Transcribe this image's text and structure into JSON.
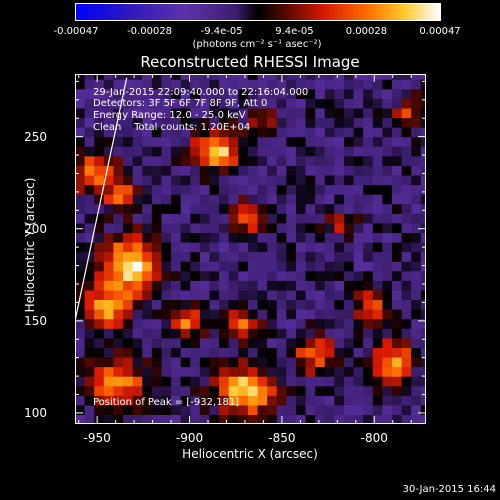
{
  "chart_data": {
    "type": "heatmap",
    "title": "Reconstructed RHESSI Image",
    "xlabel": "Heliocentric X (arcsec)",
    "ylabel": "Heliocentric Y (arcsec)",
    "xlim": [
      -962,
      -772
    ],
    "ylim": [
      94,
      284
    ],
    "xticks": [
      "-950",
      "-900",
      "-850",
      "-800"
    ],
    "xtick_values": [
      -950,
      -900,
      -850,
      -800
    ],
    "yticks": [
      "100",
      "150",
      "200",
      "250"
    ],
    "ytick_values": [
      100,
      150,
      200,
      250
    ],
    "colorbar": {
      "range": [
        -0.00047,
        0.00047
      ],
      "tick_labels": [
        "-0.00047",
        "-0.00028",
        "-9.4e-05",
        "9.4e-05",
        "0.00028",
        "0.00047"
      ],
      "units": "(photons cm⁻² s⁻¹ asec⁻²)"
    },
    "annotations": {
      "time": "29-Jan-2015 22:09:40.000 to 22:16:04.000",
      "detectors": "Detectors: 3F 5F 6F 7F 8F 9F, Att 0",
      "energy": "Energy Range: 12.0 - 25.0 keV",
      "method": "Clean    Total counts: 1.20E+04",
      "peak": "Position of Peak = [-932,181]"
    },
    "limb": {
      "x": [
        -962,
        -934
      ],
      "y": [
        150,
        282
      ]
    },
    "sources": [
      {
        "x": -885,
        "y": 243,
        "amp": 1.0,
        "sx": 9,
        "sy": 7
      },
      {
        "x": -952,
        "y": 231,
        "amp": 0.75,
        "sx": 9,
        "sy": 8
      },
      {
        "x": -937,
        "y": 218,
        "amp": 0.65,
        "sx": 6,
        "sy": 6
      },
      {
        "x": -932,
        "y": 181,
        "amp": 1.1,
        "sx": 11,
        "sy": 10
      },
      {
        "x": -945,
        "y": 158,
        "amp": 0.85,
        "sx": 10,
        "sy": 8
      },
      {
        "x": -902,
        "y": 150,
        "amp": 0.7,
        "sx": 7,
        "sy": 6
      },
      {
        "x": -868,
        "y": 207,
        "amp": 0.7,
        "sx": 6,
        "sy": 6
      },
      {
        "x": -872,
        "y": 148,
        "amp": 0.65,
        "sx": 7,
        "sy": 6
      },
      {
        "x": -870,
        "y": 112,
        "amp": 1.05,
        "sx": 11,
        "sy": 9
      },
      {
        "x": -940,
        "y": 117,
        "amp": 0.9,
        "sx": 11,
        "sy": 8
      },
      {
        "x": -832,
        "y": 132,
        "amp": 0.7,
        "sx": 8,
        "sy": 7
      },
      {
        "x": -790,
        "y": 128,
        "amp": 0.85,
        "sx": 8,
        "sy": 8
      },
      {
        "x": -802,
        "y": 158,
        "amp": 0.6,
        "sx": 6,
        "sy": 6
      },
      {
        "x": -782,
        "y": 262,
        "amp": 0.5,
        "sx": 6,
        "sy": 7
      },
      {
        "x": -818,
        "y": 202,
        "amp": 0.4,
        "sx": 6,
        "sy": 5
      },
      {
        "x": -860,
        "y": 258,
        "amp": 0.45,
        "sx": 7,
        "sy": 5
      }
    ]
  },
  "footer": {
    "timestamp": "30-Jan-2015 16:44"
  }
}
